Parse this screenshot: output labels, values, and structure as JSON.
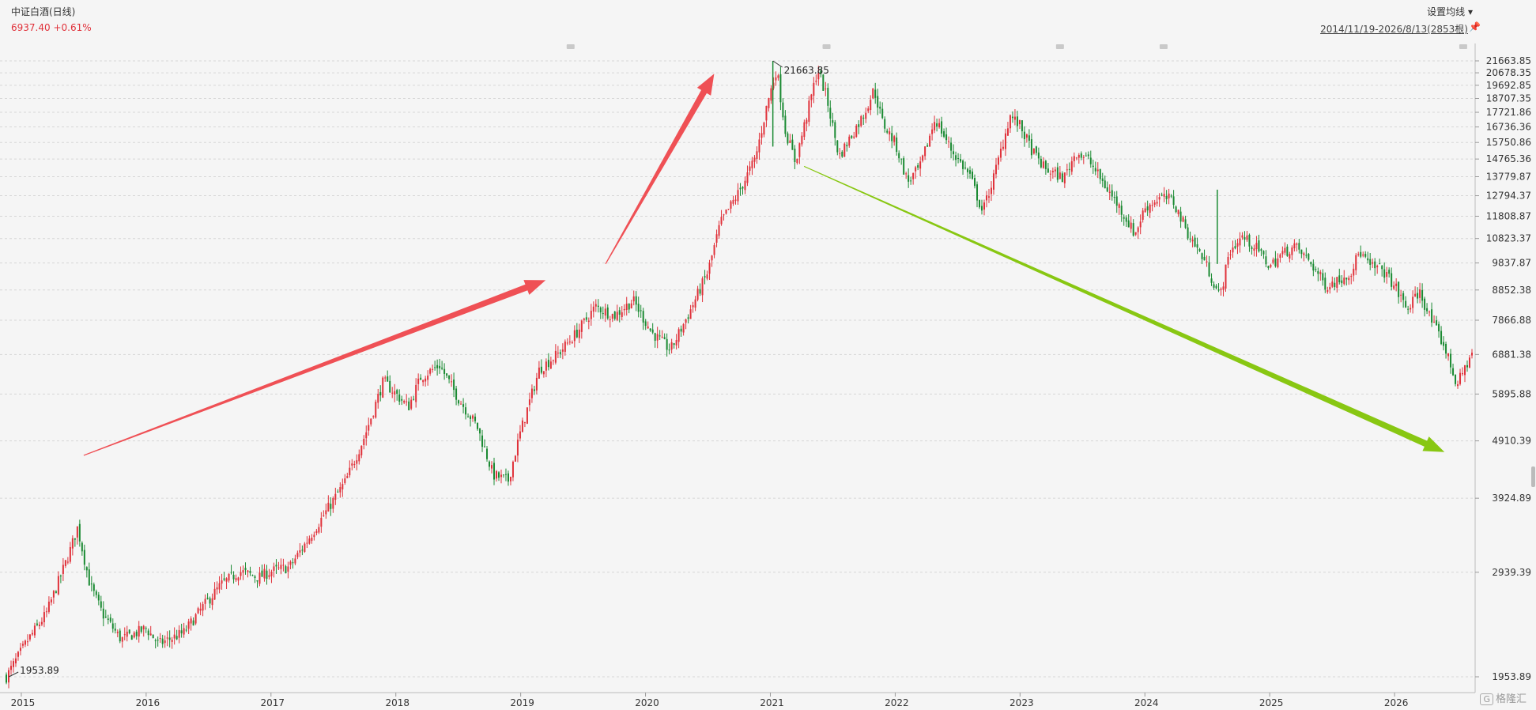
{
  "header": {
    "title": "中证白酒(日线)",
    "price_change": "6937.40 +0.61%",
    "settings_label": "设置均线 ▾",
    "date_range": "2014/11/19-2026/8/13(2853根)",
    "pin_icon": "pin-icon"
  },
  "logo": {
    "text": "格隆汇",
    "mark": "G"
  },
  "colors": {
    "up": "#e0313a",
    "down": "#1a8a32",
    "arrow_up": "#ef5055",
    "arrow_down": "#88c712",
    "grid": "#d6d6d6"
  },
  "chart_data": {
    "type": "candlestick",
    "title": "中证白酒(日线)",
    "xlabel": "",
    "ylabel": "",
    "y_scale": "log",
    "ylim": [
      1953.89,
      21663.85
    ],
    "xlim": [
      2014.88,
      2026.62
    ],
    "y_ticks": [
      "21663.85",
      "20678.35",
      "19692.85",
      "18707.35",
      "17721.86",
      "16736.36",
      "15750.86",
      "14765.36",
      "13779.87",
      "12794.37",
      "11808.87",
      "10823.37",
      "9837.87",
      "8852.38",
      "7866.88",
      "6881.38",
      "5895.88",
      "4910.39",
      "3924.89",
      "2939.39",
      "1953.89"
    ],
    "x_ticks": [
      "2015",
      "2016",
      "2017",
      "2018",
      "2019",
      "2020",
      "2021",
      "2022",
      "2023",
      "2024",
      "2025",
      "2026"
    ],
    "x_tick_values": [
      2015,
      2016,
      2017,
      2018,
      2019,
      2020,
      2021,
      2022,
      2023,
      2024,
      2025,
      2026
    ],
    "annotations": [
      {
        "label": "21663.85",
        "x": 2021.02,
        "y": 21663.85
      },
      {
        "label": "1953.89",
        "x": 2014.9,
        "y": 1953.89
      }
    ],
    "trend_arrows": [
      {
        "from": [
          2015.5,
          4640
        ],
        "to": [
          2019.2,
          9200
        ],
        "color": "up"
      },
      {
        "from": [
          2019.68,
          9800
        ],
        "to": [
          2020.55,
          20600
        ],
        "color": "up"
      },
      {
        "from": [
          2021.27,
          14350
        ],
        "to": [
          2026.4,
          4700
        ],
        "color": "down"
      }
    ],
    "close_path": [
      [
        2014.88,
        1954
      ],
      [
        2015.05,
        2250
      ],
      [
        2015.2,
        2500
      ],
      [
        2015.38,
        3150
      ],
      [
        2015.45,
        3500
      ],
      [
        2015.55,
        2800
      ],
      [
        2015.65,
        2500
      ],
      [
        2015.8,
        2260
      ],
      [
        2016.0,
        2360
      ],
      [
        2016.1,
        2220
      ],
      [
        2016.3,
        2320
      ],
      [
        2016.45,
        2560
      ],
      [
        2016.6,
        2800
      ],
      [
        2016.75,
        2950
      ],
      [
        2016.9,
        2880
      ],
      [
        2017.0,
        2950
      ],
      [
        2017.15,
        3000
      ],
      [
        2017.3,
        3350
      ],
      [
        2017.45,
        3750
      ],
      [
        2017.6,
        4200
      ],
      [
        2017.75,
        5000
      ],
      [
        2017.9,
        6200
      ],
      [
        2018.0,
        5900
      ],
      [
        2018.1,
        5600
      ],
      [
        2018.2,
        6300
      ],
      [
        2018.35,
        6600
      ],
      [
        2018.5,
        5800
      ],
      [
        2018.65,
        5200
      ],
      [
        2018.78,
        4300
      ],
      [
        2018.9,
        4200
      ],
      [
        2019.0,
        5100
      ],
      [
        2019.15,
        6500
      ],
      [
        2019.3,
        6900
      ],
      [
        2019.45,
        7500
      ],
      [
        2019.6,
        8300
      ],
      [
        2019.75,
        8000
      ],
      [
        2019.9,
        8500
      ],
      [
        2020.05,
        7500
      ],
      [
        2020.2,
        7000
      ],
      [
        2020.35,
        8100
      ],
      [
        2020.5,
        9500
      ],
      [
        2020.6,
        11500
      ],
      [
        2020.75,
        13000
      ],
      [
        2020.88,
        14800
      ],
      [
        2020.98,
        18500
      ],
      [
        2021.05,
        21000
      ],
      [
        2021.12,
        16500
      ],
      [
        2021.2,
        14600
      ],
      [
        2021.3,
        17800
      ],
      [
        2021.38,
        21000
      ],
      [
        2021.45,
        18800
      ],
      [
        2021.55,
        14900
      ],
      [
        2021.65,
        16200
      ],
      [
        2021.75,
        17600
      ],
      [
        2021.83,
        19400
      ],
      [
        2021.9,
        17000
      ],
      [
        2022.0,
        15700
      ],
      [
        2022.1,
        13500
      ],
      [
        2022.2,
        14300
      ],
      [
        2022.32,
        17300
      ],
      [
        2022.45,
        15300
      ],
      [
        2022.6,
        13800
      ],
      [
        2022.7,
        12000
      ],
      [
        2022.8,
        14000
      ],
      [
        2022.92,
        17500
      ],
      [
        2023.0,
        16800
      ],
      [
        2023.1,
        15200
      ],
      [
        2023.2,
        14200
      ],
      [
        2023.35,
        13700
      ],
      [
        2023.45,
        15200
      ],
      [
        2023.55,
        14700
      ],
      [
        2023.68,
        13300
      ],
      [
        2023.8,
        12200
      ],
      [
        2023.92,
        11000
      ],
      [
        2024.0,
        12200
      ],
      [
        2024.12,
        12700
      ],
      [
        2024.22,
        12600
      ],
      [
        2024.35,
        11000
      ],
      [
        2024.48,
        9900
      ],
      [
        2024.6,
        8600
      ],
      [
        2024.68,
        10300
      ],
      [
        2024.78,
        10900
      ],
      [
        2024.9,
        10400
      ],
      [
        2025.0,
        9700
      ],
      [
        2025.1,
        10200
      ],
      [
        2025.2,
        10500
      ],
      [
        2025.32,
        9900
      ],
      [
        2025.45,
        9000
      ],
      [
        2025.55,
        9200
      ],
      [
        2025.65,
        9500
      ],
      [
        2025.72,
        10300
      ],
      [
        2025.8,
        9700
      ],
      [
        2025.9,
        9600
      ],
      [
        2026.0,
        9000
      ],
      [
        2026.1,
        8200
      ],
      [
        2026.2,
        8800
      ],
      [
        2026.3,
        7800
      ],
      [
        2026.4,
        7100
      ],
      [
        2026.5,
        6100
      ],
      [
        2026.56,
        6500
      ],
      [
        2026.62,
        6937
      ]
    ]
  }
}
